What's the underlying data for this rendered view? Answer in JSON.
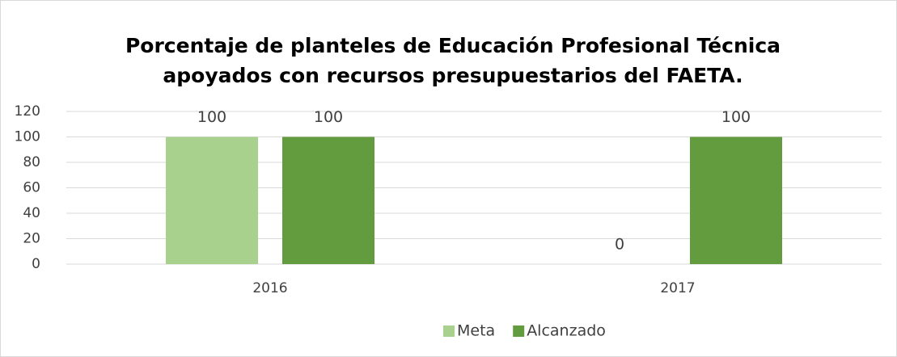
{
  "chart_data": {
    "type": "bar",
    "title": [
      "Porcentaje de planteles de Educación Profesional Técnica",
      "apoyados con recursos presupuestarios del FAETA."
    ],
    "categories": [
      "2016",
      "2017"
    ],
    "series": [
      {
        "name": "Meta",
        "color": "#a9d18e",
        "values": [
          100,
          0
        ]
      },
      {
        "name": "Alcanzado",
        "color": "#639c3f",
        "values": [
          100,
          100
        ]
      }
    ],
    "ylim": [
      0,
      120
    ],
    "yticks": [
      0,
      20,
      40,
      60,
      80,
      100,
      120
    ],
    "grid": true,
    "legend": "bottom",
    "data_labels": true
  }
}
